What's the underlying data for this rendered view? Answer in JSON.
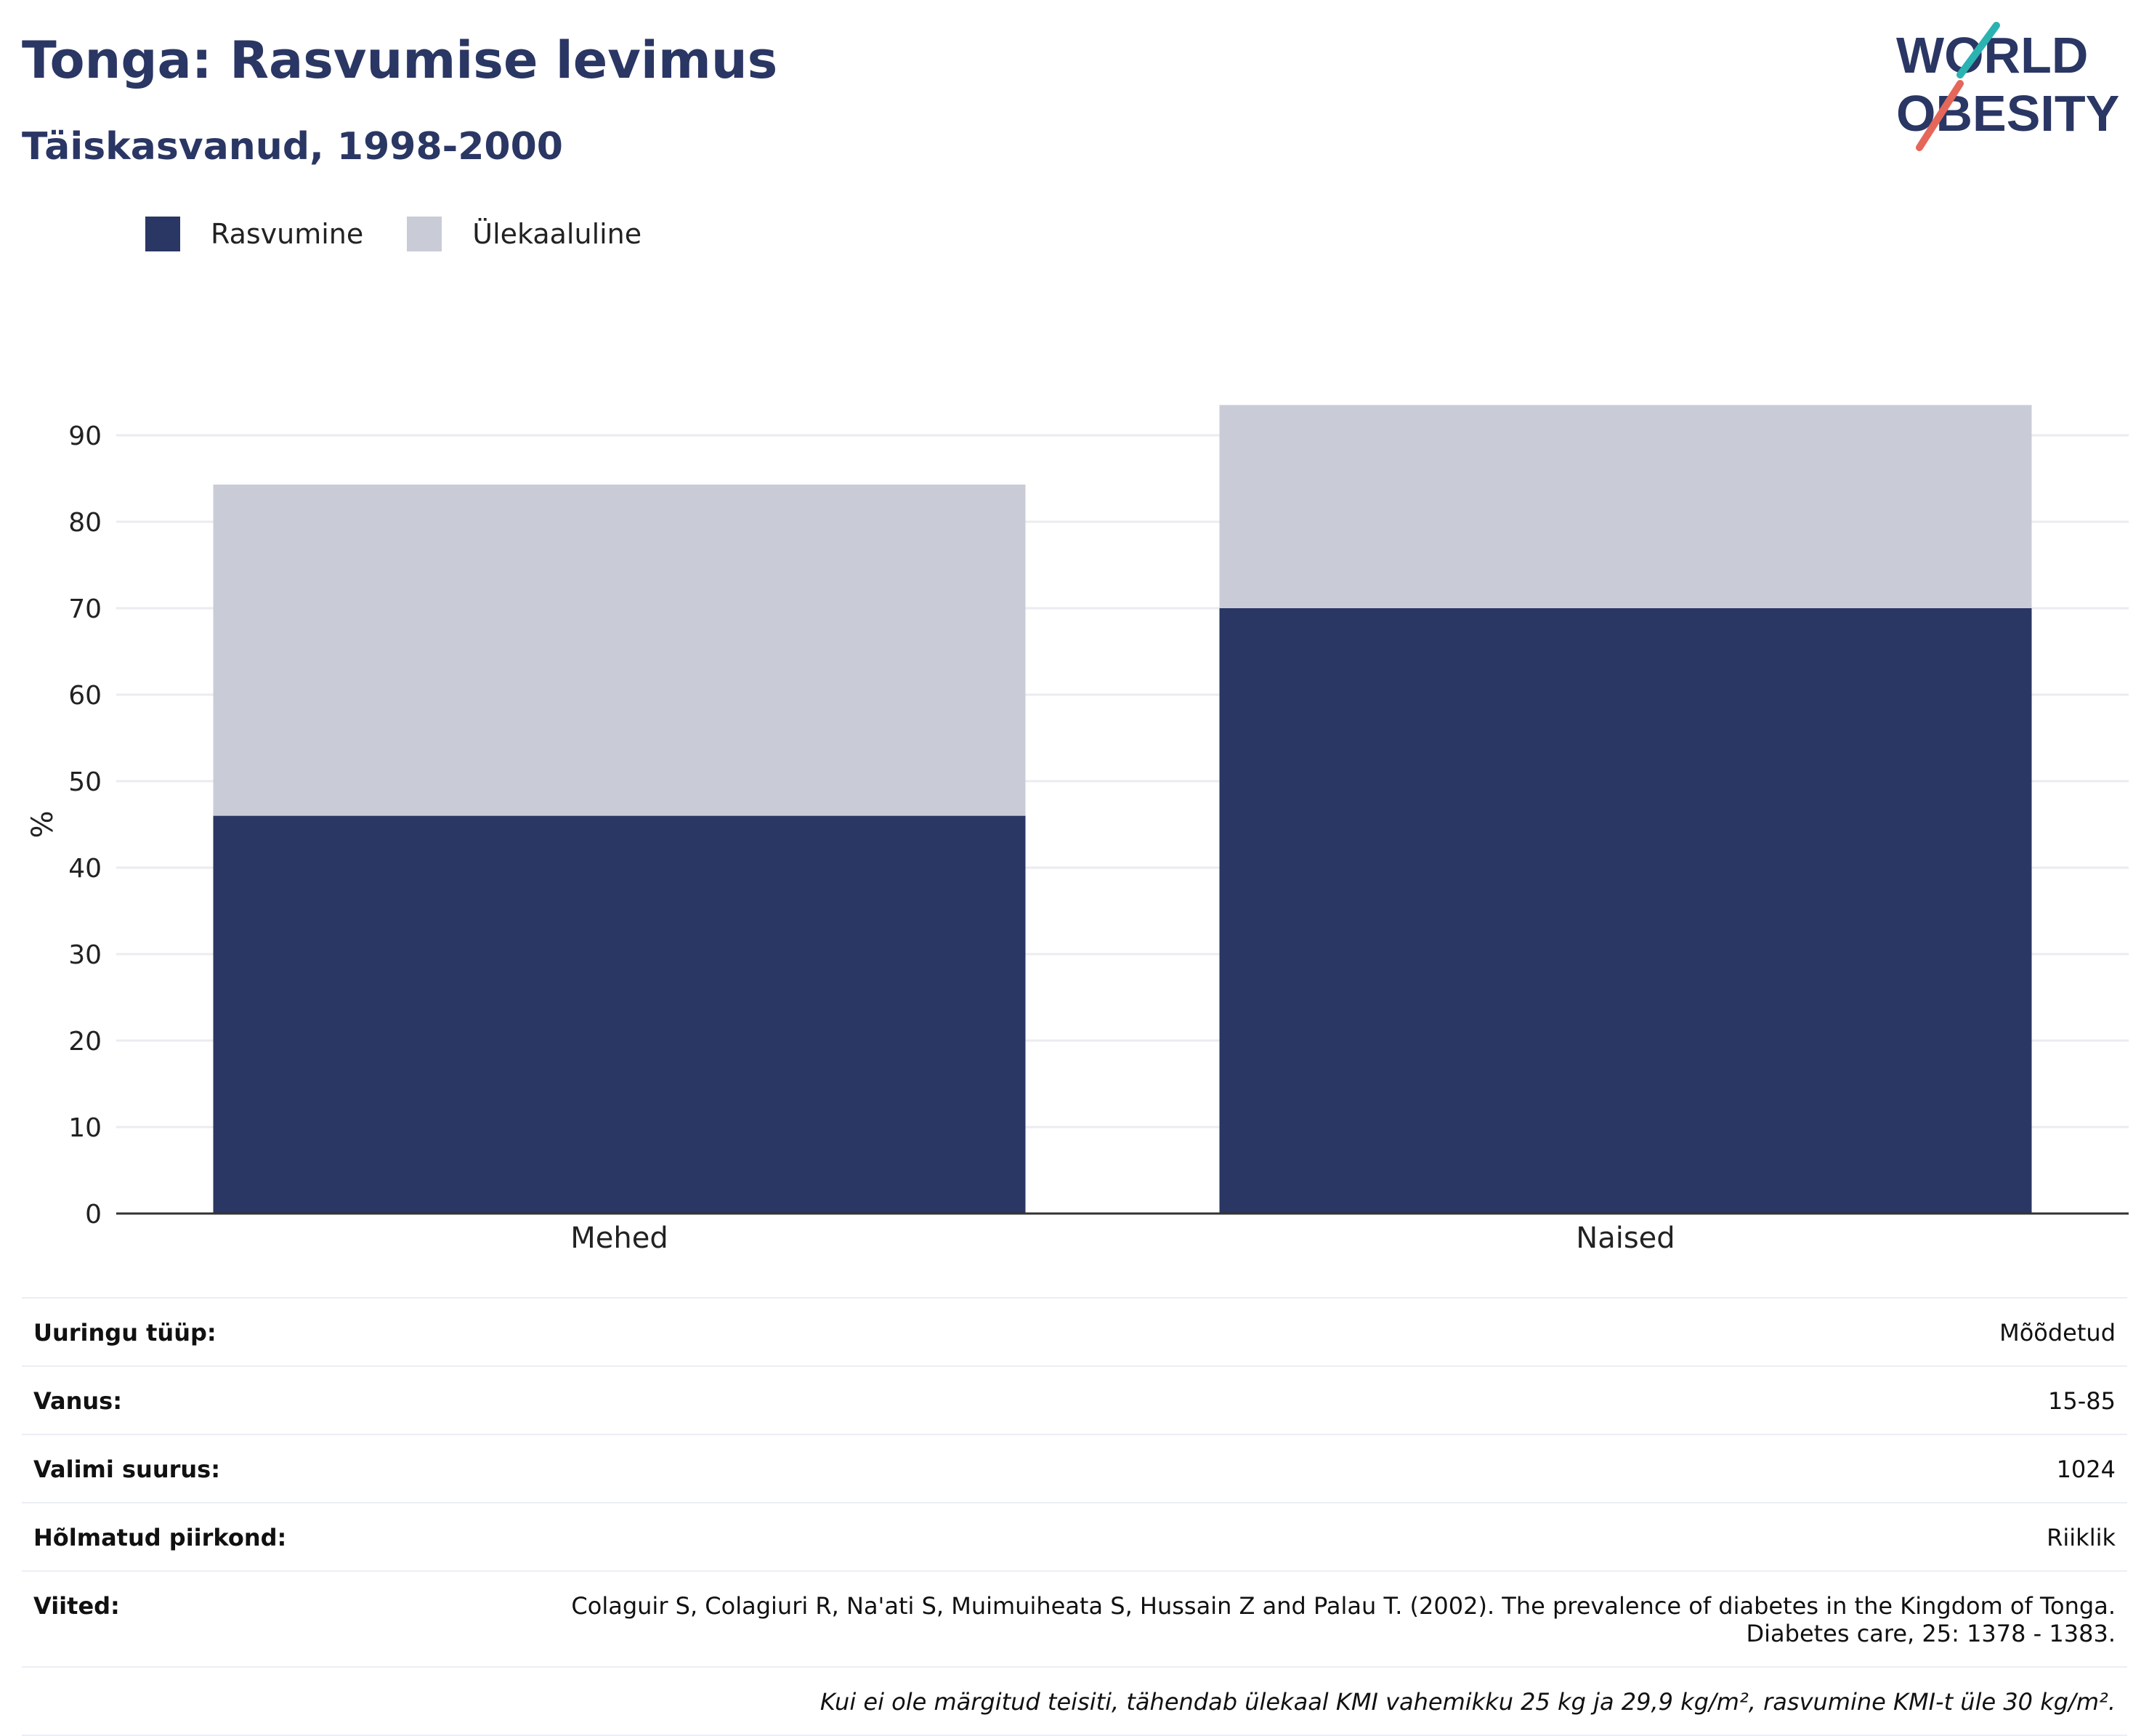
{
  "header": {
    "title": "Tonga: Rasvumise levimus",
    "subtitle": "Täiskasvanud, 1998-2000"
  },
  "logo": {
    "line1": "WORLD",
    "line2": "OBESITY"
  },
  "colors": {
    "obese": "#2a3663",
    "overweight": "#c9ccd7",
    "text": "#2a3663"
  },
  "chart_data": {
    "type": "bar",
    "stacked": true,
    "categories": [
      "Mehed",
      "Naised"
    ],
    "series": [
      {
        "name": "Rasvumine",
        "values": [
          46,
          70
        ]
      },
      {
        "name": "Ülekaaluline",
        "values": [
          38.3,
          23.5
        ]
      }
    ],
    "ylabel": "%",
    "ylim": [
      0,
      90
    ],
    "yticks": [
      0,
      10,
      20,
      30,
      40,
      50,
      60,
      70,
      80,
      90
    ],
    "grid": true,
    "legend_position": "top-left"
  },
  "table": {
    "rows": [
      {
        "label": "Uuringu tüüp:",
        "value": "Mõõdetud"
      },
      {
        "label": "Vanus:",
        "value": "15-85"
      },
      {
        "label": "Valimi suurus:",
        "value": "1024"
      },
      {
        "label": "Hõlmatud piirkond:",
        "value": "Riiklik"
      }
    ],
    "reference_label": "Viited:",
    "reference_line1": "Colaguir S, Colagiuri R, Na'ati S, Muimuiheata S, Hussain Z and Palau T. (2002). The prevalence of diabetes in the Kingdom of Tonga.",
    "reference_line2": "Diabetes care, 25: 1378 - 1383.",
    "note": "Kui ei ole märgitud teisiti, tähendab ülekaal KMI vahemikku 25 kg ja 29,9 kg/m², rasvumine KMI-t üle 30 kg/m²."
  }
}
